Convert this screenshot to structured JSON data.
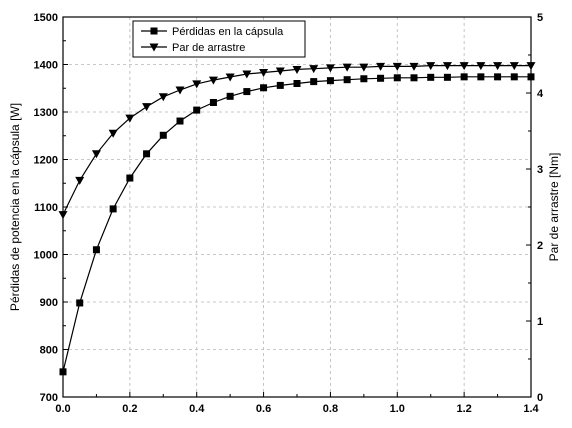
{
  "chart_data": {
    "type": "line",
    "x": [
      0.0,
      0.05,
      0.1,
      0.15,
      0.2,
      0.25,
      0.3,
      0.35,
      0.4,
      0.45,
      0.5,
      0.55,
      0.6,
      0.65,
      0.7,
      0.75,
      0.8,
      0.85,
      0.9,
      0.95,
      1.0,
      1.05,
      1.1,
      1.15,
      1.2,
      1.25,
      1.3,
      1.35,
      1.4
    ],
    "series": [
      {
        "name": "Pérdidas en la cápsula",
        "axis": "left",
        "marker": "square",
        "values": [
          753,
          898,
          1010,
          1096,
          1161,
          1212,
          1251,
          1281,
          1304,
          1320,
          1333,
          1343,
          1351,
          1356,
          1360,
          1364,
          1366,
          1368,
          1370,
          1371,
          1372,
          1372,
          1373,
          1373,
          1374,
          1374,
          1374,
          1374,
          1374
        ]
      },
      {
        "name": "Par de arrastre",
        "axis": "right",
        "marker": "triangle-down",
        "values": [
          2.4,
          2.85,
          3.2,
          3.47,
          3.67,
          3.82,
          3.95,
          4.04,
          4.12,
          4.17,
          4.21,
          4.25,
          4.27,
          4.29,
          4.31,
          4.32,
          4.33,
          4.34,
          4.34,
          4.35,
          4.35,
          4.35,
          4.36,
          4.36,
          4.36,
          4.36,
          4.36,
          4.36,
          4.36
        ]
      }
    ],
    "xlim": [
      0.0,
      1.4
    ],
    "ylim_left": [
      700,
      1500
    ],
    "ylim_right": [
      0,
      5
    ],
    "xticks": [
      "0.0",
      "0.2",
      "0.4",
      "0.6",
      "0.8",
      "1.0",
      "1.2",
      "1.4"
    ],
    "yticks_left": [
      "700",
      "800",
      "900",
      "1000",
      "1100",
      "1200",
      "1300",
      "1400",
      "1500"
    ],
    "yticks_right": [
      "0",
      "1",
      "2",
      "3",
      "4",
      "5"
    ],
    "ylabel_left": "Pérdidas de potencia en la cápsula [W]",
    "ylabel_right": "Par de arrastre [Nm]",
    "grid": true,
    "legend_position": "top-left"
  }
}
